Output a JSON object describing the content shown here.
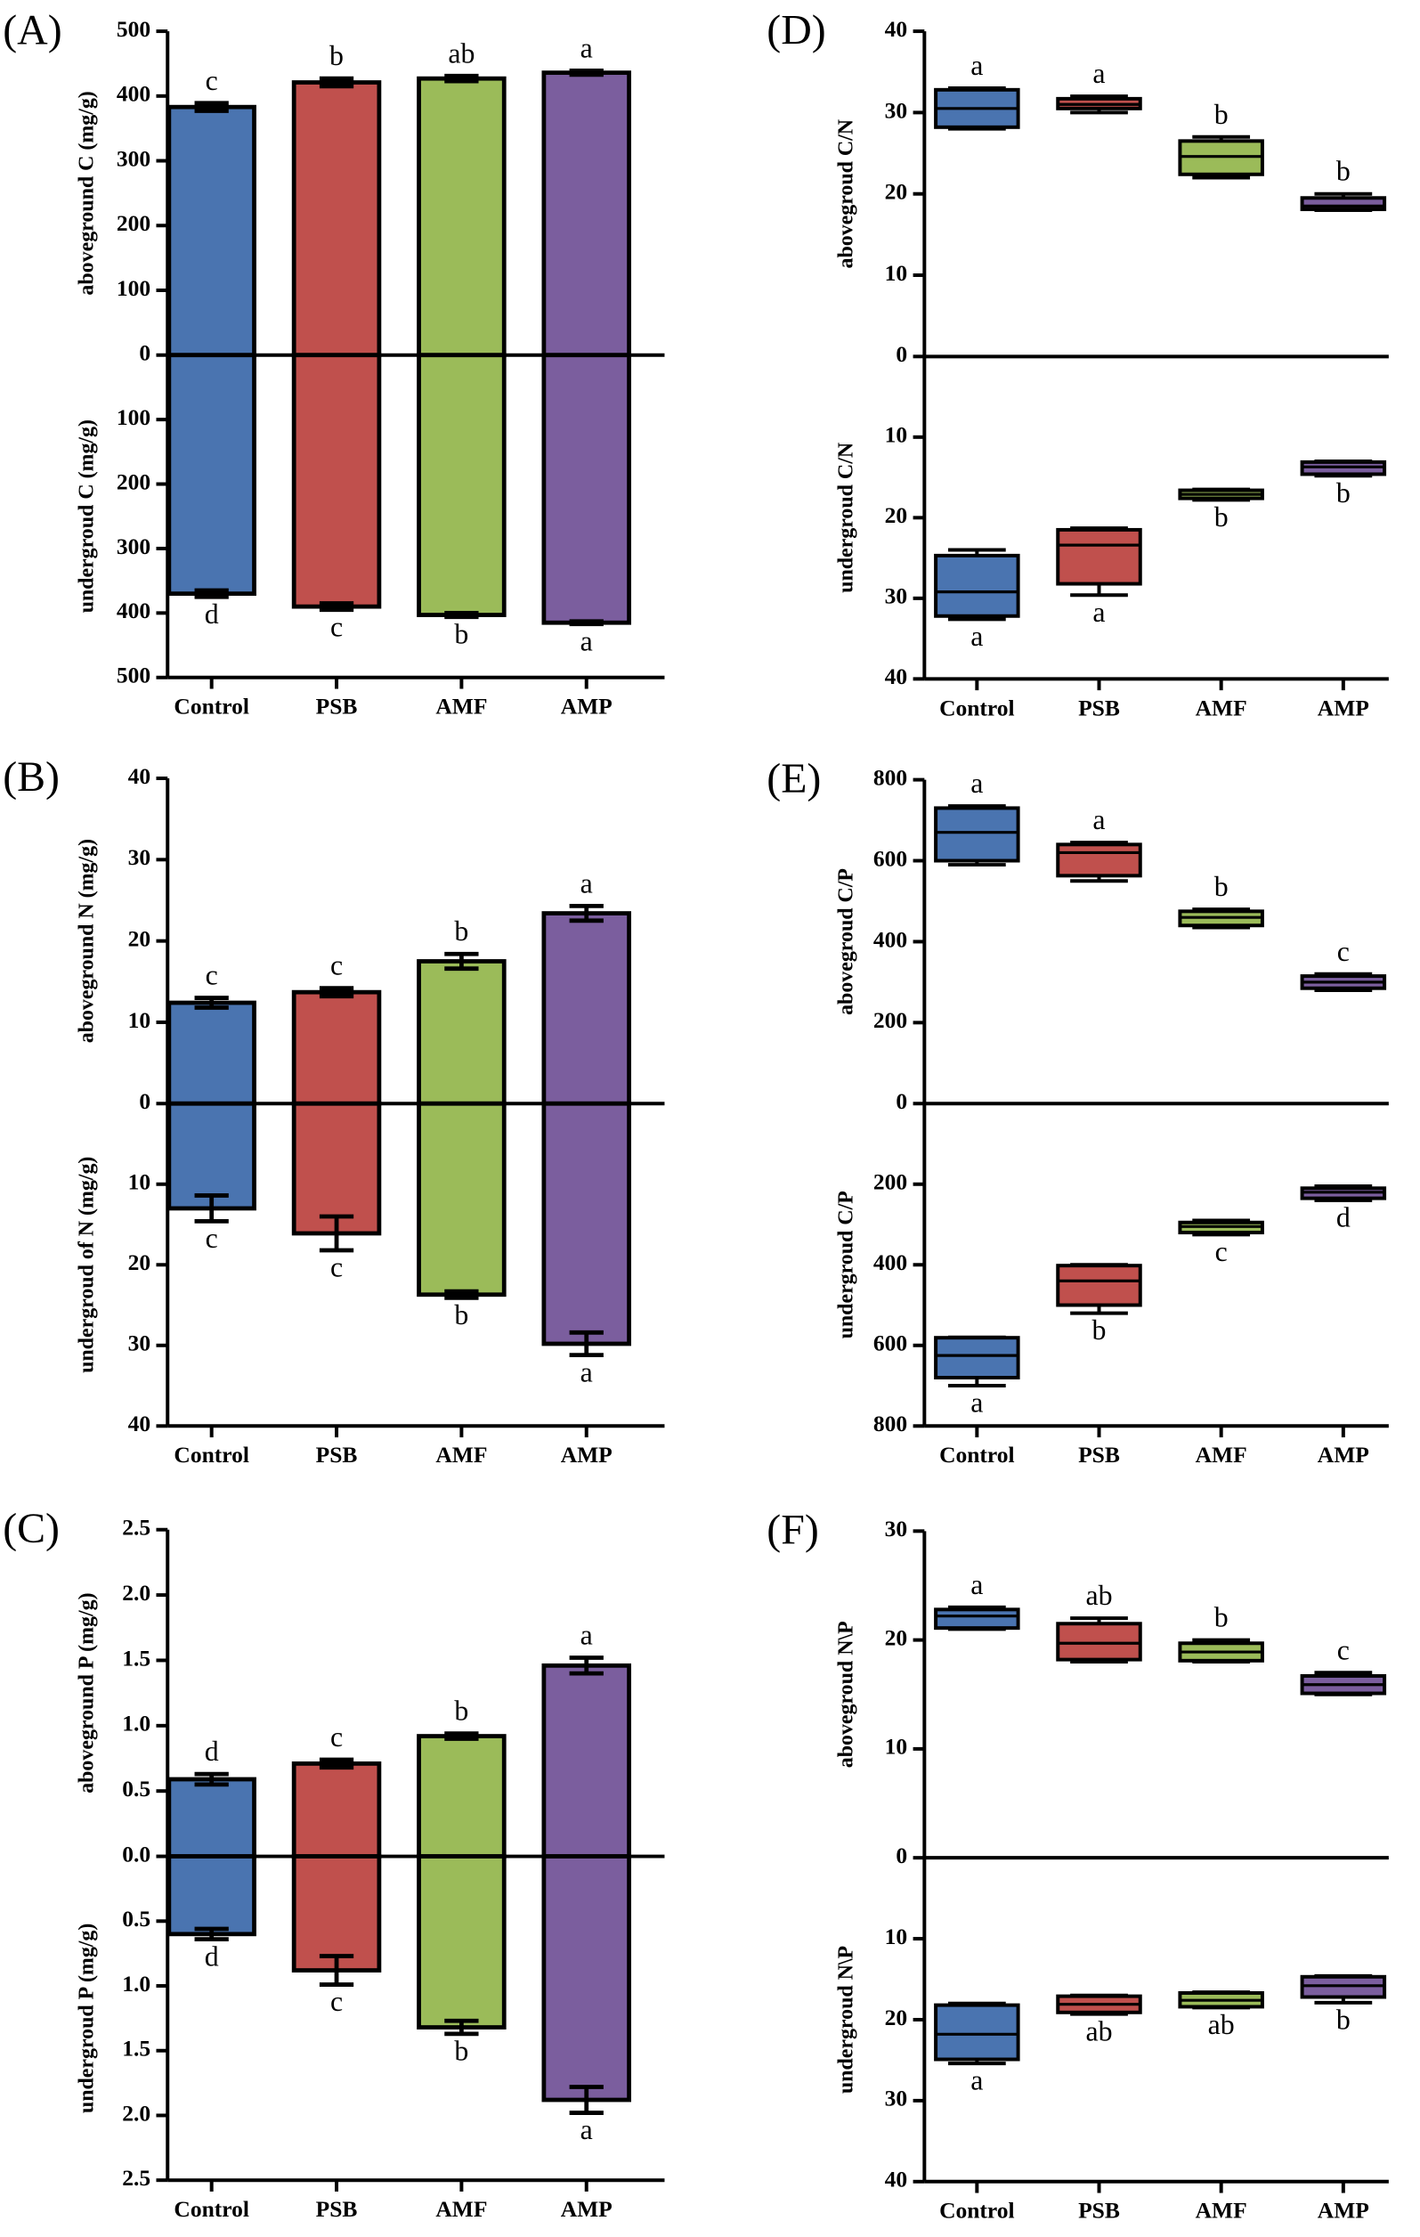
{
  "chart_data": [
    {
      "type": "bar",
      "panel": "(A)",
      "categories": [
        "Control",
        "PSB",
        "AMF",
        "AMP"
      ],
      "colors": [
        "#4a74b0",
        "#c0504d",
        "#9bbb59",
        "#7b5e9e"
      ],
      "upper": {
        "ylabel": "aboveground C (mg/g)",
        "ylim": [
          0,
          500
        ],
        "yticks": [
          0,
          100,
          200,
          300,
          400,
          500
        ],
        "values": [
          383,
          421,
          427,
          436
        ],
        "errors": [
          6,
          6,
          4,
          3
        ],
        "letters": [
          "c",
          "b",
          "ab",
          "a"
        ]
      },
      "lower": {
        "ylabel": "undergroud C (mg/g)",
        "ylim": [
          0,
          500
        ],
        "yticks": [
          100,
          200,
          300,
          400,
          500
        ],
        "values": [
          370,
          390,
          403,
          415
        ],
        "errors": [
          5,
          5,
          3,
          2
        ],
        "letters": [
          "d",
          "c",
          "b",
          "a"
        ]
      }
    },
    {
      "type": "bar",
      "panel": "(B)",
      "categories": [
        "Control",
        "PSB",
        "AMF",
        "AMP"
      ],
      "colors": [
        "#4a74b0",
        "#c0504d",
        "#9bbb59",
        "#7b5e9e"
      ],
      "upper": {
        "ylabel": "aboveground N (mg/g)",
        "ylim": [
          0,
          40
        ],
        "yticks": [
          0,
          10,
          20,
          30,
          40
        ],
        "values": [
          12.4,
          13.7,
          17.5,
          23.4
        ],
        "errors": [
          0.6,
          0.5,
          0.9,
          0.9
        ],
        "letters": [
          "c",
          "c",
          "b",
          "a"
        ]
      },
      "lower": {
        "ylabel": "undergroud of N (mg/g)",
        "ylim": [
          0,
          40
        ],
        "yticks": [
          10,
          20,
          30,
          40
        ],
        "values": [
          13,
          16.1,
          23.7,
          29.8
        ],
        "errors": [
          1.6,
          2.1,
          0.4,
          1.4
        ],
        "letters": [
          "c",
          "c",
          "b",
          "a"
        ]
      }
    },
    {
      "type": "bar",
      "panel": "(C)",
      "categories": [
        "Control",
        "PSB",
        "AMF",
        "AMP"
      ],
      "colors": [
        "#4a74b0",
        "#c0504d",
        "#9bbb59",
        "#7b5e9e"
      ],
      "upper": {
        "ylabel": "aboveground P (mg/g)",
        "ylim": [
          0,
          2.5
        ],
        "yticks": [
          {
            "value": 0,
            "label": "0.0"
          },
          0.5,
          {
            "value": 1,
            "label": "1.0"
          },
          1.5,
          {
            "value": 2,
            "label": "2.0"
          },
          2.5
        ],
        "values": [
          0.59,
          0.71,
          0.92,
          1.46
        ],
        "errors": [
          0.04,
          0.03,
          0.02,
          0.06
        ],
        "letters": [
          "d",
          "c",
          "b",
          "a"
        ]
      },
      "lower": {
        "ylabel": "undergroud P (mg/g)",
        "ylim": [
          0,
          2.5
        ],
        "yticks": [
          0.5,
          {
            "value": 1,
            "label": "1.0"
          },
          1.5,
          {
            "value": 2,
            "label": "2.0"
          },
          2.5
        ],
        "values": [
          0.6,
          0.88,
          1.32,
          1.88
        ],
        "errors": [
          0.04,
          0.11,
          0.05,
          0.1
        ],
        "letters": [
          "d",
          "c",
          "b",
          "a"
        ]
      }
    },
    {
      "type": "box",
      "panel": "(D)",
      "categories": [
        "Control",
        "PSB",
        "AMF",
        "AMP"
      ],
      "colors": [
        "#4a74b0",
        "#c0504d",
        "#9bbb59",
        "#7b5e9e"
      ],
      "upper": {
        "ylabel": "abovegroud C/N",
        "ylim": [
          0,
          40
        ],
        "yticks": [
          0,
          10,
          20,
          30,
          40
        ],
        "boxes": [
          [
            28,
            28.2,
            30.5,
            32.8,
            33
          ],
          [
            30,
            30.5,
            31,
            31.7,
            32
          ],
          [
            22,
            22.4,
            24.6,
            26.5,
            27
          ],
          [
            18,
            18.1,
            18.5,
            19.5,
            20
          ]
        ],
        "letters": [
          "a",
          "a",
          "b",
          "b"
        ]
      },
      "lower": {
        "ylabel": "undergroud C/N",
        "ylim": [
          0,
          40
        ],
        "yticks": [
          10,
          20,
          30,
          40
        ],
        "boxes": [
          [
            24,
            24.7,
            29.2,
            32.2,
            32.6
          ],
          [
            21.3,
            21.5,
            23.4,
            28.2,
            29.6
          ],
          [
            16.5,
            16.6,
            17.1,
            17.6,
            17.8
          ],
          [
            13,
            13.1,
            13.7,
            14.6,
            14.8
          ]
        ],
        "letters": [
          "a",
          "a",
          "b",
          "b"
        ]
      }
    },
    {
      "type": "box",
      "panel": "(E)",
      "categories": [
        "Control",
        "PSB",
        "AMF",
        "AMP"
      ],
      "colors": [
        "#4a74b0",
        "#c0504d",
        "#9bbb59",
        "#7b5e9e"
      ],
      "upper": {
        "ylabel": "abovegroud C/P",
        "ylim": [
          0,
          800
        ],
        "yticks": [
          0,
          200,
          400,
          600,
          800
        ],
        "boxes": [
          [
            590,
            600,
            670,
            730,
            735
          ],
          [
            550,
            563,
            620,
            640,
            645
          ],
          [
            435,
            440,
            460,
            475,
            480
          ],
          [
            280,
            285,
            300,
            315,
            320
          ]
        ],
        "letters": [
          "a",
          "a",
          "b",
          "c"
        ]
      },
      "lower": {
        "ylabel": "undergroud C/P",
        "ylim": [
          0,
          800
        ],
        "yticks": [
          200,
          400,
          600,
          800
        ],
        "boxes": [
          [
            580,
            581,
            625,
            680,
            700
          ],
          [
            400,
            402,
            440,
            500,
            520
          ],
          [
            290,
            295,
            305,
            320,
            325
          ],
          [
            205,
            210,
            220,
            235,
            240
          ]
        ],
        "letters": [
          "a",
          "b",
          "c",
          "d"
        ]
      }
    },
    {
      "type": "box",
      "panel": "(F)",
      "categories": [
        "Control",
        "PSB",
        "AMF",
        "AMP"
      ],
      "colors": [
        "#4a74b0",
        "#c0504d",
        "#9bbb59",
        "#7b5e9e"
      ],
      "upper": {
        "ylabel": "abovegroud N\\P",
        "ylim": [
          0,
          30
        ],
        "yticks": [
          0,
          10,
          20,
          30
        ],
        "boxes": [
          [
            21,
            21.1,
            22.2,
            22.8,
            23
          ],
          [
            18,
            18.2,
            19.7,
            21.5,
            22
          ],
          [
            18,
            18.1,
            18.9,
            19.7,
            20
          ],
          [
            15,
            15.1,
            15.9,
            16.7,
            17
          ]
        ],
        "letters": [
          "a",
          "ab",
          "b",
          "c"
        ]
      },
      "lower": {
        "ylabel": "undergroud N\\P",
        "ylim": [
          0,
          40
        ],
        "yticks": [
          10,
          20,
          30,
          40
        ],
        "boxes": [
          [
            18,
            18.2,
            21.8,
            24.9,
            25.4
          ],
          [
            17,
            17.1,
            18.1,
            19.1,
            19.3
          ],
          [
            16.6,
            16.7,
            17.6,
            18.4,
            18.5
          ],
          [
            14.6,
            14.7,
            15.8,
            17.2,
            17.9
          ]
        ],
        "letters": [
          "a",
          "ab",
          "ab",
          "b"
        ]
      }
    }
  ]
}
